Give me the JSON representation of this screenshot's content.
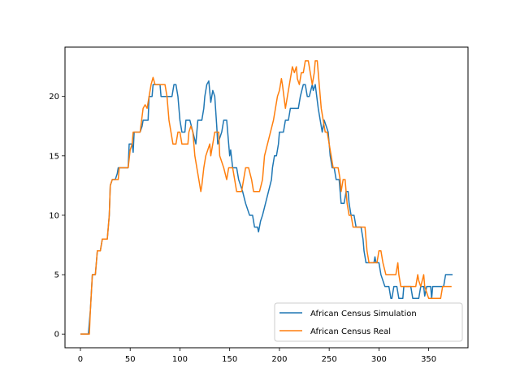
{
  "chart_data": {
    "type": "line",
    "xlim": [
      -15.5,
      389.5
    ],
    "ylim": [
      -1.15,
      24.15
    ],
    "xticks": [
      0,
      50,
      100,
      150,
      200,
      250,
      300,
      350
    ],
    "yticks": [
      0,
      5,
      10,
      15,
      20
    ],
    "grid": false,
    "legend_position": "lower-right",
    "series": [
      {
        "name": "African Census Simulation",
        "color": "#1f77b4",
        "points": [
          [
            0,
            0
          ],
          [
            8,
            0
          ],
          [
            10,
            2
          ],
          [
            12,
            5
          ],
          [
            15,
            5
          ],
          [
            17,
            7
          ],
          [
            20,
            7
          ],
          [
            22,
            8
          ],
          [
            27,
            8
          ],
          [
            29,
            10
          ],
          [
            30,
            12.5
          ],
          [
            32,
            13
          ],
          [
            35,
            13
          ],
          [
            37,
            13.5
          ],
          [
            38,
            14
          ],
          [
            48,
            14
          ],
          [
            49,
            16
          ],
          [
            52,
            16
          ],
          [
            53,
            15.3
          ],
          [
            54,
            17
          ],
          [
            60,
            17
          ],
          [
            62,
            17.5
          ],
          [
            63,
            18
          ],
          [
            68,
            18
          ],
          [
            69,
            20
          ],
          [
            72,
            20
          ],
          [
            73,
            21
          ],
          [
            80,
            21
          ],
          [
            81,
            20
          ],
          [
            92,
            20
          ],
          [
            94,
            21
          ],
          [
            96,
            21
          ],
          [
            98,
            20
          ],
          [
            100,
            18
          ],
          [
            102,
            17
          ],
          [
            105,
            17
          ],
          [
            106,
            18
          ],
          [
            110,
            18
          ],
          [
            113,
            17
          ],
          [
            116,
            16
          ],
          [
            117,
            17
          ],
          [
            118,
            18
          ],
          [
            122,
            18
          ],
          [
            124,
            19
          ],
          [
            125,
            20
          ],
          [
            127,
            21
          ],
          [
            129,
            21.3
          ],
          [
            131,
            19.5
          ],
          [
            133,
            20.5
          ],
          [
            135,
            20
          ],
          [
            137,
            17.5
          ],
          [
            138,
            16
          ],
          [
            140,
            16.5
          ],
          [
            142,
            17
          ],
          [
            144,
            18
          ],
          [
            147,
            18
          ],
          [
            149,
            16
          ],
          [
            150,
            15
          ],
          [
            151,
            15.5
          ],
          [
            153,
            14
          ],
          [
            157,
            14
          ],
          [
            159,
            13
          ],
          [
            163,
            12
          ],
          [
            166,
            11
          ],
          [
            170,
            10
          ],
          [
            173,
            10
          ],
          [
            175,
            9
          ],
          [
            178,
            9
          ],
          [
            179,
            8.6
          ],
          [
            181,
            9.5
          ],
          [
            183,
            10
          ],
          [
            186,
            11
          ],
          [
            189,
            12
          ],
          [
            192,
            13
          ],
          [
            193,
            14
          ],
          [
            195,
            15
          ],
          [
            197,
            15
          ],
          [
            199,
            16
          ],
          [
            200,
            17
          ],
          [
            204,
            17
          ],
          [
            206,
            18
          ],
          [
            209,
            18
          ],
          [
            211,
            19
          ],
          [
            219,
            19
          ],
          [
            221,
            20
          ],
          [
            224,
            21
          ],
          [
            226,
            21
          ],
          [
            228,
            20
          ],
          [
            230,
            20
          ],
          [
            233,
            21
          ],
          [
            234,
            20.5
          ],
          [
            236,
            21
          ],
          [
            239,
            19
          ],
          [
            241,
            18
          ],
          [
            243,
            17
          ],
          [
            245,
            18
          ],
          [
            247,
            17.5
          ],
          [
            249,
            17
          ],
          [
            251,
            15
          ],
          [
            253,
            14
          ],
          [
            255,
            14
          ],
          [
            257,
            13
          ],
          [
            260,
            13
          ],
          [
            261,
            12
          ],
          [
            262,
            11
          ],
          [
            265,
            11
          ],
          [
            267,
            12
          ],
          [
            269,
            12
          ],
          [
            270,
            11
          ],
          [
            272,
            10
          ],
          [
            275,
            10
          ],
          [
            277,
            9
          ],
          [
            282,
            9
          ],
          [
            284,
            8
          ],
          [
            285,
            7
          ],
          [
            287,
            6
          ],
          [
            295,
            6
          ],
          [
            296,
            6.5
          ],
          [
            297,
            6
          ],
          [
            300,
            6
          ],
          [
            302,
            5
          ],
          [
            306,
            4
          ],
          [
            309,
            4
          ],
          [
            310,
            4
          ],
          [
            312,
            3
          ],
          [
            313,
            3
          ],
          [
            315,
            4
          ],
          [
            318,
            4
          ],
          [
            320,
            3
          ],
          [
            324,
            3
          ],
          [
            325,
            4
          ],
          [
            332,
            4
          ],
          [
            334,
            3
          ],
          [
            340,
            3
          ],
          [
            342,
            4
          ],
          [
            345,
            4
          ],
          [
            346,
            3.2
          ],
          [
            348,
            4
          ],
          [
            352,
            4
          ],
          [
            353,
            3
          ],
          [
            354,
            4
          ],
          [
            365,
            4
          ],
          [
            367,
            5
          ],
          [
            374,
            5
          ]
        ]
      },
      {
        "name": "African Census Real",
        "color": "#ff7f0e",
        "points": [
          [
            0,
            0
          ],
          [
            9,
            0
          ],
          [
            10,
            2
          ],
          [
            12,
            5
          ],
          [
            15,
            5
          ],
          [
            17,
            7
          ],
          [
            20,
            7
          ],
          [
            22,
            8
          ],
          [
            27,
            8
          ],
          [
            29,
            10
          ],
          [
            30,
            12.5
          ],
          [
            32,
            13
          ],
          [
            38,
            13
          ],
          [
            39,
            14
          ],
          [
            48,
            14
          ],
          [
            50,
            15.5
          ],
          [
            52,
            16
          ],
          [
            53,
            17
          ],
          [
            60,
            17
          ],
          [
            63,
            19
          ],
          [
            65,
            19.3
          ],
          [
            67,
            19
          ],
          [
            69,
            20
          ],
          [
            71,
            21
          ],
          [
            73,
            21.6
          ],
          [
            75,
            21
          ],
          [
            85,
            21
          ],
          [
            87,
            20
          ],
          [
            89,
            18
          ],
          [
            91,
            17
          ],
          [
            93,
            16
          ],
          [
            96,
            16
          ],
          [
            98,
            17
          ],
          [
            100,
            17
          ],
          [
            102,
            16
          ],
          [
            108,
            16
          ],
          [
            109,
            17
          ],
          [
            111,
            17.5
          ],
          [
            113,
            17
          ],
          [
            115,
            15
          ],
          [
            117,
            14
          ],
          [
            119,
            13
          ],
          [
            121,
            12
          ],
          [
            122,
            12.5
          ],
          [
            124,
            14
          ],
          [
            126,
            15
          ],
          [
            128,
            15.5
          ],
          [
            130,
            16
          ],
          [
            131,
            15
          ],
          [
            133,
            16
          ],
          [
            135,
            17
          ],
          [
            139,
            17
          ],
          [
            140,
            15
          ],
          [
            142,
            14.5
          ],
          [
            144,
            14
          ],
          [
            147,
            13
          ],
          [
            149,
            14
          ],
          [
            153,
            14
          ],
          [
            155,
            13
          ],
          [
            157,
            12
          ],
          [
            162,
            12
          ],
          [
            164,
            13
          ],
          [
            166,
            14
          ],
          [
            169,
            14
          ],
          [
            172,
            13
          ],
          [
            174,
            12
          ],
          [
            180,
            12
          ],
          [
            183,
            13
          ],
          [
            185,
            15
          ],
          [
            188,
            16
          ],
          [
            191,
            17
          ],
          [
            194,
            18
          ],
          [
            196,
            19
          ],
          [
            198,
            20
          ],
          [
            200,
            20.5
          ],
          [
            202,
            21.5
          ],
          [
            203,
            21
          ],
          [
            206,
            19
          ],
          [
            208,
            20
          ],
          [
            210,
            21
          ],
          [
            212,
            22
          ],
          [
            213,
            22.5
          ],
          [
            215,
            22
          ],
          [
            217,
            22.5
          ],
          [
            218,
            21.5
          ],
          [
            220,
            21
          ],
          [
            222,
            22
          ],
          [
            224,
            22
          ],
          [
            226,
            23
          ],
          [
            229,
            23
          ],
          [
            231,
            22
          ],
          [
            233,
            21
          ],
          [
            235,
            22
          ],
          [
            236,
            23
          ],
          [
            238,
            23
          ],
          [
            240,
            21
          ],
          [
            242,
            19
          ],
          [
            244,
            18
          ],
          [
            246,
            17
          ],
          [
            248,
            17
          ],
          [
            250,
            16
          ],
          [
            252,
            15
          ],
          [
            254,
            14
          ],
          [
            259,
            14
          ],
          [
            261,
            13
          ],
          [
            262,
            12
          ],
          [
            264,
            13
          ],
          [
            266,
            13
          ],
          [
            268,
            11
          ],
          [
            270,
            10
          ],
          [
            272,
            10
          ],
          [
            274,
            9
          ],
          [
            286,
            9
          ],
          [
            288,
            7
          ],
          [
            290,
            6
          ],
          [
            298,
            6
          ],
          [
            300,
            7
          ],
          [
            302,
            7
          ],
          [
            304,
            6
          ],
          [
            307,
            5
          ],
          [
            317,
            5
          ],
          [
            319,
            6
          ],
          [
            320,
            5
          ],
          [
            322,
            4
          ],
          [
            337,
            4
          ],
          [
            339,
            5
          ],
          [
            340,
            4.5
          ],
          [
            342,
            4
          ],
          [
            345,
            5
          ],
          [
            346,
            4
          ],
          [
            348,
            3.5
          ],
          [
            350,
            3
          ],
          [
            362,
            3
          ],
          [
            364,
            4
          ],
          [
            373,
            4
          ]
        ]
      }
    ]
  }
}
